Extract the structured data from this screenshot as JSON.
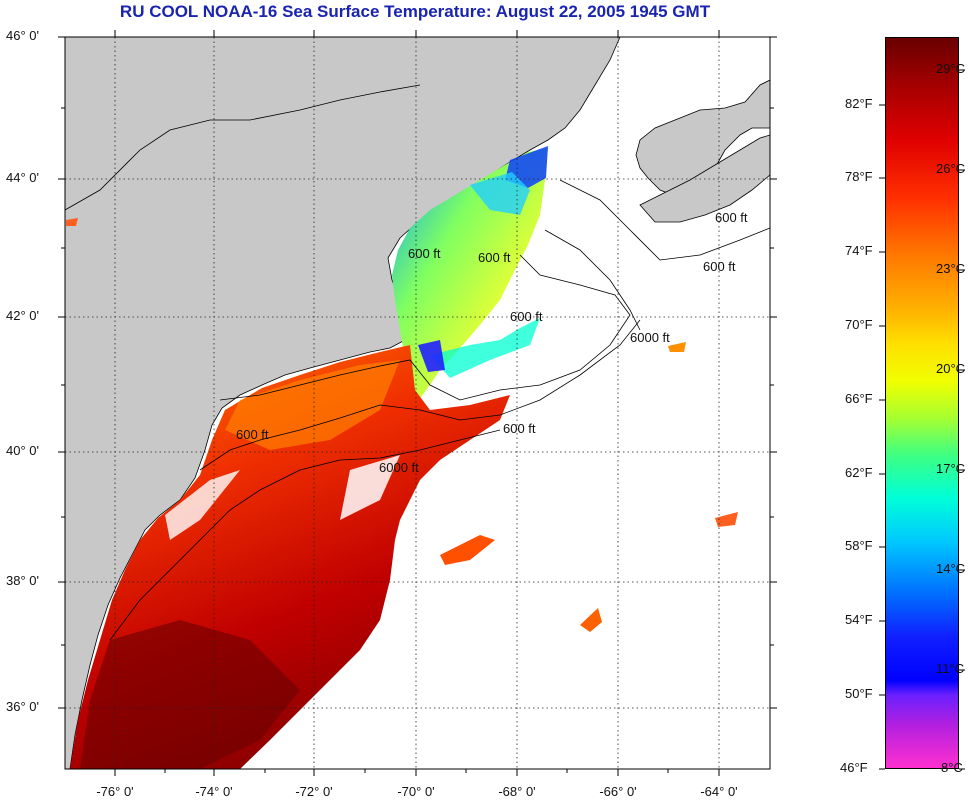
{
  "title": "RU COOL  NOAA-16  Sea Surface Temperature:  August 22, 2005 1945 GMT",
  "lat_labels": [
    "46° 0'",
    "44° 0'",
    "42° 0'",
    "40° 0'",
    "38° 0'",
    "36° 0'"
  ],
  "lon_labels": [
    "-76° 0'",
    "-74° 0'",
    "-72° 0'",
    "-70° 0'",
    "-68° 0'",
    "-66° 0'",
    "-64° 0'"
  ],
  "contour_labels": [
    "600 ft",
    "600 ft",
    "600 ft",
    "600 ft",
    "6000 ft",
    "600 ft",
    "6000 ft",
    "600 ft",
    "600 ft"
  ],
  "colorbar": {
    "fahrenheit": [
      "82°F",
      "78°F",
      "74°F",
      "70°F",
      "66°F",
      "62°F",
      "58°F",
      "54°F",
      "50°F",
      "46°F"
    ],
    "celsius": [
      "29°C",
      "26°C",
      "23°C",
      "20°C",
      "17°C",
      "14°C",
      "11°C",
      "8°C"
    ]
  },
  "colors": {
    "land": "#c8c8c8",
    "title": "#1a24b0",
    "warm": "#8b0000",
    "cool": "#0000ff"
  }
}
